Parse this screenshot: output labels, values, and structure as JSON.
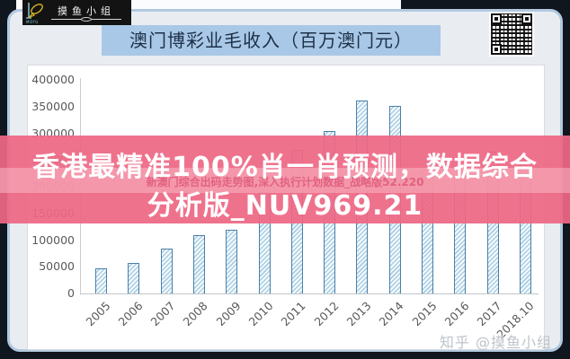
{
  "logo": {
    "brand": "摸鱼小组",
    "sub": "MOYU"
  },
  "title_bar": {
    "text": "澳门博彩业毛收入（百万澳门元）"
  },
  "overlay_banner": {
    "line1": "香港最精准100%肖一肖预测，数据综合",
    "line2": "分析版_NUV969.21",
    "watermark_line": "新澳门综合出码走势图,深入执行计划数据_战略版52.220",
    "bg_color": "#ee6784",
    "stripe_color": "#fab7c4"
  },
  "watermark": {
    "text": "知乎 @摸鱼小组"
  },
  "chart_data": {
    "type": "bar",
    "title": "澳门博彩业毛收入（百万澳门元）",
    "categories": [
      "2005",
      "2006",
      "2007",
      "2008",
      "2009",
      "2010",
      "2011",
      "2012",
      "2013",
      "2014",
      "2015",
      "2016",
      "2017",
      "2018.10"
    ],
    "values": [
      47000,
      57500,
      84000,
      110000,
      120000,
      190000,
      269000,
      305000,
      362000,
      352000,
      232000,
      223000,
      266000,
      251000
    ],
    "xlabel": "",
    "ylabel": "",
    "ylim": [
      0,
      400000
    ],
    "ytick_step": 50000,
    "grid": false,
    "legend": false,
    "bar_outline_color": "#4a7fa8",
    "bar_hatch_color": "#a9cde2",
    "axis_label_color": "#595959"
  }
}
